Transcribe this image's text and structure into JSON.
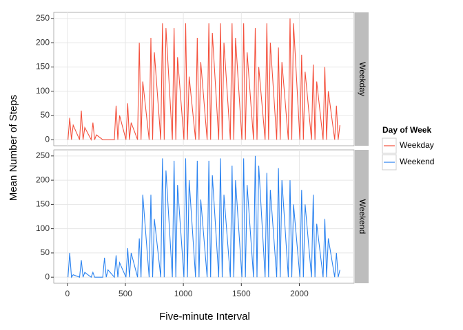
{
  "chart_data": {
    "type": "line",
    "x_label": "Five-minute Interval",
    "y_label": "Mean Number of Steps",
    "legend_title": "Day of Week",
    "legend_position": "right",
    "facets": true,
    "grid": true,
    "x": [
      5,
      20,
      35,
      50,
      105,
      120,
      135,
      150,
      205,
      220,
      235,
      250,
      305,
      320,
      335,
      350,
      405,
      420,
      435,
      450,
      505,
      520,
      535,
      550,
      605,
      620,
      635,
      650,
      705,
      720,
      735,
      750,
      805,
      820,
      835,
      850,
      905,
      920,
      935,
      950,
      1005,
      1020,
      1035,
      1050,
      1105,
      1120,
      1135,
      1150,
      1205,
      1220,
      1235,
      1250,
      1305,
      1320,
      1335,
      1350,
      1405,
      1420,
      1435,
      1450,
      1505,
      1520,
      1535,
      1550,
      1605,
      1620,
      1635,
      1650,
      1705,
      1720,
      1735,
      1750,
      1805,
      1820,
      1835,
      1850,
      1905,
      1920,
      1935,
      1950,
      2005,
      2020,
      2035,
      2050,
      2105,
      2120,
      2135,
      2150,
      2205,
      2220,
      2235,
      2250,
      2305,
      2320,
      2335,
      2350
    ],
    "xlim": [
      -117.75,
      2472.75
    ],
    "xticks": [
      0,
      500,
      1000,
      1500,
      2000
    ],
    "ylim": [
      -12.5,
      262.5
    ],
    "yticks": [
      0,
      50,
      100,
      150,
      200,
      250
    ],
    "series": [
      {
        "name": "Weekday",
        "color": "#f4503c",
        "values": [
          0,
          45,
          0,
          30,
          0,
          60,
          0,
          25,
          0,
          35,
          0,
          10,
          0,
          0,
          0,
          0,
          0,
          70,
          0,
          50,
          0,
          75,
          0,
          35,
          0,
          200,
          0,
          120,
          0,
          210,
          0,
          180,
          0,
          240,
          0,
          230,
          0,
          230,
          0,
          170,
          0,
          240,
          0,
          130,
          0,
          210,
          0,
          160,
          0,
          240,
          0,
          220,
          0,
          240,
          0,
          200,
          0,
          240,
          0,
          210,
          0,
          240,
          0,
          180,
          0,
          230,
          0,
          150,
          0,
          240,
          0,
          200,
          0,
          190,
          0,
          160,
          0,
          250,
          0,
          240,
          0,
          175,
          0,
          140,
          0,
          155,
          0,
          120,
          0,
          150,
          0,
          100,
          0,
          70,
          0,
          30
        ]
      },
      {
        "name": "Weekend",
        "color": "#2b83f0",
        "values": [
          0,
          50,
          0,
          5,
          0,
          35,
          0,
          10,
          0,
          10,
          0,
          0,
          0,
          40,
          0,
          15,
          0,
          45,
          0,
          30,
          0,
          60,
          0,
          50,
          0,
          80,
          0,
          170,
          0,
          170,
          0,
          120,
          0,
          245,
          0,
          220,
          0,
          240,
          0,
          190,
          0,
          245,
          0,
          200,
          0,
          240,
          0,
          160,
          0,
          240,
          0,
          210,
          0,
          245,
          0,
          170,
          0,
          230,
          0,
          200,
          0,
          245,
          0,
          190,
          0,
          250,
          0,
          230,
          0,
          215,
          0,
          180,
          0,
          225,
          0,
          200,
          0,
          200,
          0,
          150,
          0,
          180,
          0,
          150,
          0,
          170,
          0,
          110,
          0,
          120,
          0,
          80,
          0,
          50,
          0,
          15
        ]
      }
    ]
  }
}
